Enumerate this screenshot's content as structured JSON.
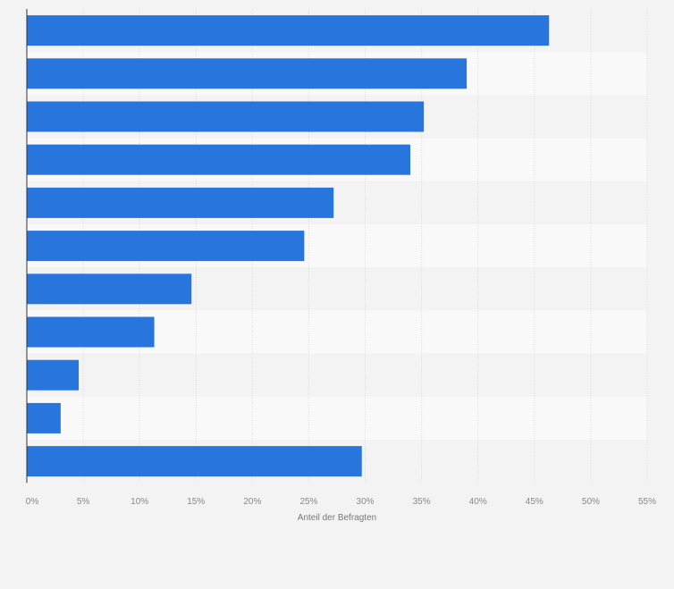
{
  "colors": {
    "bar": "#2876dd",
    "band_light": "#f3f3f3",
    "band_dark": "#f9f9f9",
    "grid": "#dddddd",
    "axis": "#333333",
    "background": "#f3f3f3"
  },
  "chart_data": {
    "type": "bar",
    "orientation": "horizontal",
    "categories": [
      "",
      "",
      "",
      "",
      "",
      "",
      "",
      "",
      "",
      "",
      ""
    ],
    "values": [
      46.3,
      39.0,
      35.2,
      34.0,
      27.2,
      24.6,
      14.6,
      11.3,
      4.6,
      3.0,
      29.7
    ],
    "xlabel": "Anteil der Befragten",
    "xlim": [
      0,
      55
    ],
    "x_ticks": [
      "0%",
      "5%",
      "10%",
      "15%",
      "20%",
      "25%",
      "30%",
      "35%",
      "40%",
      "45%",
      "50%",
      "55%"
    ],
    "grid": true,
    "legend": "none"
  }
}
